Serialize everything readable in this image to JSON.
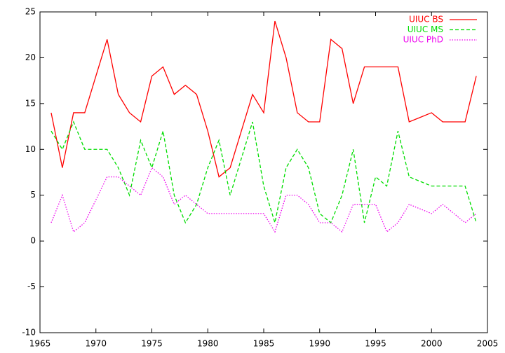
{
  "chart_data": {
    "type": "line",
    "x": [
      1966,
      1967,
      1968,
      1969,
      1970,
      1971,
      1972,
      1973,
      1974,
      1975,
      1976,
      1977,
      1978,
      1979,
      1980,
      1981,
      1982,
      1983,
      1984,
      1985,
      1986,
      1987,
      1988,
      1989,
      1990,
      1991,
      1992,
      1993,
      1994,
      1995,
      1996,
      1997,
      1998,
      1999,
      2000,
      2001,
      2002,
      2003,
      2004
    ],
    "series": [
      {
        "name": "UIUC BS",
        "color": "#ff0000",
        "dash": "solid",
        "values": [
          14,
          8,
          14,
          14,
          18,
          22,
          16,
          14,
          13,
          18,
          19,
          16,
          17,
          16,
          12,
          7,
          8,
          12,
          16,
          14,
          24,
          20,
          14,
          13,
          13,
          22,
          21,
          15,
          19,
          19,
          19,
          19,
          13,
          13.5,
          14,
          13,
          13,
          13,
          18
        ]
      },
      {
        "name": "UIUC MS",
        "color": "#00dd00",
        "dash": "dashed",
        "values": [
          12,
          10,
          13,
          10,
          10,
          10,
          8,
          5,
          11,
          8,
          12,
          5,
          2,
          4,
          8,
          11,
          5,
          9,
          13,
          6,
          2,
          8,
          10,
          8,
          3,
          2,
          5,
          10,
          2,
          7,
          6,
          12,
          7,
          6.5,
          6,
          6,
          6,
          6,
          2
        ]
      },
      {
        "name": "UIUC PhD",
        "color": "#ee00ee",
        "dash": "dotted",
        "values": [
          2,
          5,
          1,
          2,
          4.5,
          7,
          7,
          6,
          5,
          8,
          7,
          4,
          5,
          4,
          3,
          3,
          3,
          3,
          3,
          3,
          1,
          5,
          5,
          4,
          2,
          2,
          1,
          4,
          4,
          4,
          1,
          2,
          4,
          3.5,
          3,
          4,
          3,
          2,
          3
        ]
      }
    ],
    "xlim": [
      1965,
      2005
    ],
    "xticks": [
      1965,
      1970,
      1975,
      1980,
      1985,
      1990,
      1995,
      2000,
      2005
    ],
    "ylim": [
      -10,
      25
    ],
    "yticks": [
      -10,
      -5,
      0,
      5,
      10,
      15,
      20,
      25
    ],
    "legend": "top-right"
  }
}
